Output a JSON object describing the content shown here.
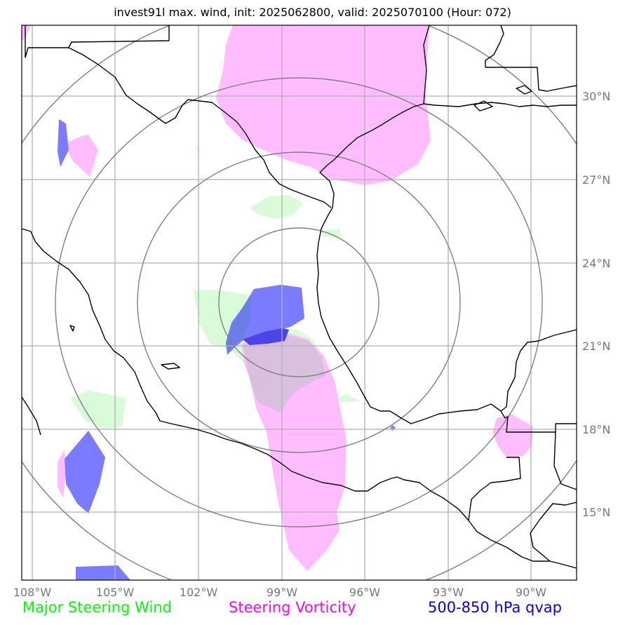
{
  "title": "invest91l max. wind, init: 2025062800, valid: 2025070100 (Hour: 072)",
  "axes": {
    "lon_labels": [
      "108°W",
      "105°W",
      "102°W",
      "99°W",
      "96°W",
      "93°W",
      "90°W"
    ],
    "lat_labels": [
      "30°N",
      "27°N",
      "24°N",
      "21°N",
      "18°N",
      "15°N"
    ],
    "grid": true,
    "grid_color": "#b0b0b0"
  },
  "legend": {
    "wind": "Major Steering Wind",
    "vorticity": "Steering Vorticity",
    "qvap": "500-850 hPa qvap"
  },
  "colors": {
    "wind": "#00ff00",
    "wind_fill": "#d9fbd9",
    "vorticity": "#ff00ff",
    "vorticity_fill": "#ffbcff",
    "qvap": "#0000ff",
    "qvap_fill": "#7b7bff",
    "range_rings": "#808080",
    "coastline": "#000000"
  }
}
